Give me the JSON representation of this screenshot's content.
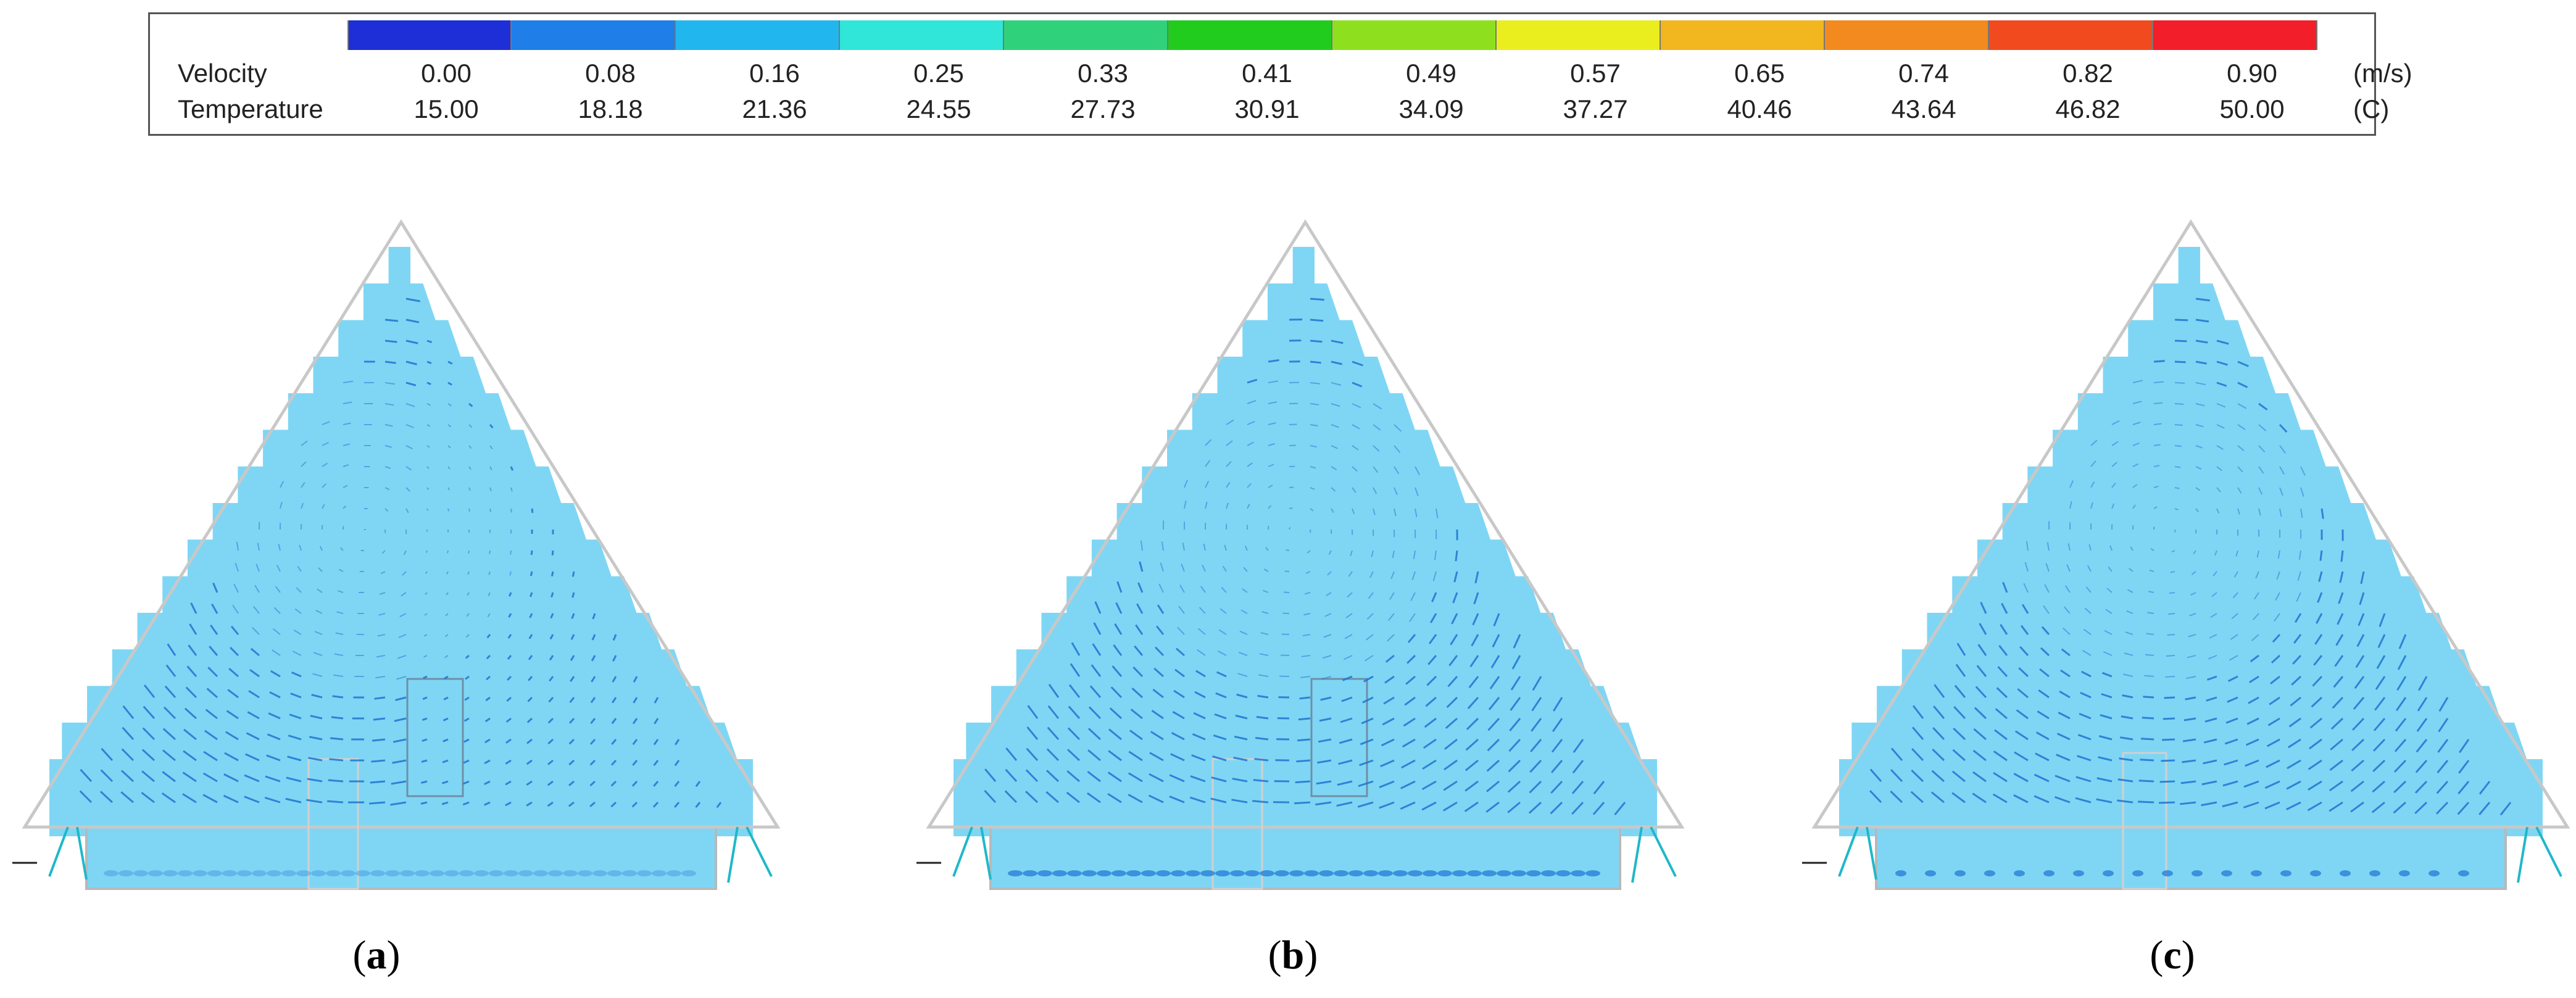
{
  "legend": {
    "colors": [
      "#1f2fd8",
      "#1f7ee8",
      "#22b6ee",
      "#2fe6d8",
      "#2fd27a",
      "#22cc1f",
      "#8ee01f",
      "#eaee1f",
      "#f2b61f",
      "#f28a1f",
      "#f24a1f",
      "#f21f2a"
    ],
    "velocity": {
      "label": "Velocity",
      "values": [
        "0.00",
        "0.08",
        "0.16",
        "0.25",
        "0.33",
        "0.41",
        "0.49",
        "0.57",
        "0.65",
        "0.74",
        "0.82",
        "0.90"
      ],
      "unit": "(m/s)"
    },
    "temperature": {
      "label": "Temperature",
      "values": [
        "15.00",
        "18.18",
        "21.36",
        "24.55",
        "27.73",
        "30.91",
        "34.09",
        "37.27",
        "40.46",
        "43.64",
        "46.82",
        "50.00"
      ],
      "unit": "(C)"
    }
  },
  "panels": [
    {
      "letter": "a",
      "fill": "#7fd6f4",
      "arrow": "#1f74d0"
    },
    {
      "letter": "b",
      "fill": "#7fd6f4",
      "arrow": "#1f74d0"
    },
    {
      "letter": "c",
      "fill": "#7fd6f4",
      "arrow": "#1f74d0"
    }
  ]
}
